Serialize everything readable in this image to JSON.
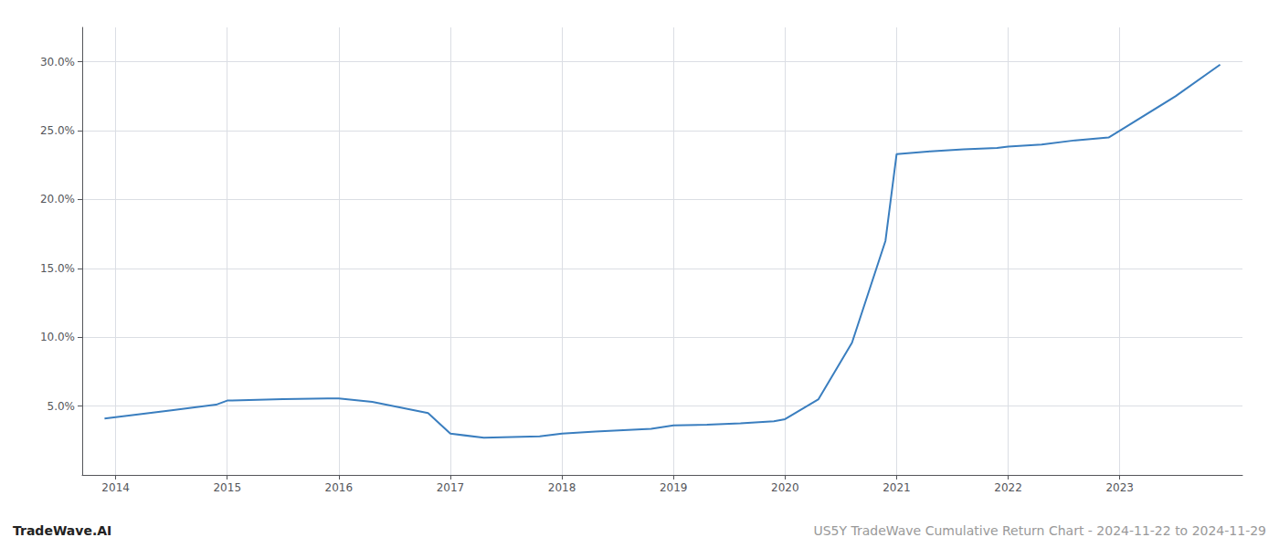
{
  "chart_data": {
    "type": "line",
    "x": [
      2013.9,
      2014.0,
      2014.5,
      2014.9,
      2015.0,
      2015.5,
      2015.9,
      2016.0,
      2016.3,
      2016.8,
      2017.0,
      2017.3,
      2017.8,
      2018.0,
      2018.3,
      2018.8,
      2019.0,
      2019.3,
      2019.6,
      2019.9,
      2020.0,
      2020.3,
      2020.6,
      2020.9,
      2021.0,
      2021.3,
      2021.6,
      2021.9,
      2022.0,
      2022.3,
      2022.6,
      2022.9,
      2023.0,
      2023.5,
      2023.9
    ],
    "values": [
      4.1,
      4.2,
      4.7,
      5.1,
      5.4,
      5.5,
      5.55,
      5.55,
      5.3,
      4.5,
      3.0,
      2.7,
      2.8,
      3.0,
      3.15,
      3.35,
      3.6,
      3.65,
      3.75,
      3.9,
      4.05,
      5.5,
      9.6,
      17.0,
      23.3,
      23.5,
      23.65,
      23.75,
      23.85,
      24.0,
      24.3,
      24.5,
      25.0,
      27.5,
      29.8
    ],
    "color": "#3a7ebf",
    "xlim": [
      2013.7,
      2024.1
    ],
    "xticks": [
      2014,
      2015,
      2016,
      2017,
      2018,
      2019,
      2020,
      2021,
      2022,
      2023
    ],
    "ylim": [
      0.0,
      32.5
    ],
    "yticks": [
      {
        "value": 5.0,
        "label": "5.0%"
      },
      {
        "value": 10.0,
        "label": "10.0%"
      },
      {
        "value": 15.0,
        "label": "15.0%"
      },
      {
        "value": 20.0,
        "label": "20.0%"
      },
      {
        "value": 25.0,
        "label": "25.0%"
      },
      {
        "value": 30.0,
        "label": "30.0%"
      }
    ],
    "grid": true,
    "annotations": [
      "TradeWave.AI",
      "US5Y TradeWave Cumulative Return Chart - 2024-11-22 to 2024-11-29"
    ]
  }
}
